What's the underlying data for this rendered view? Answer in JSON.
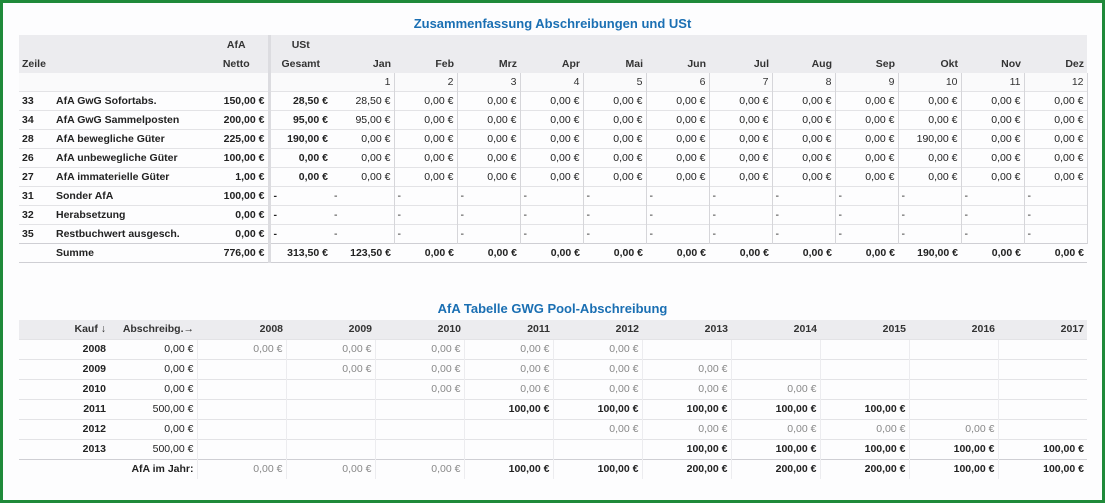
{
  "summary": {
    "title": "Zusammenfassung Abschreibungen und USt",
    "headers": {
      "zeile": "Zeile",
      "afa_top": "AfA",
      "afa_bottom": "Netto",
      "ust_top": "USt",
      "ust_bottom": "Gesamt",
      "months": [
        "Jan",
        "Feb",
        "Mrz",
        "Apr",
        "Mai",
        "Jun",
        "Jul",
        "Aug",
        "Sep",
        "Okt",
        "Nov",
        "Dez"
      ],
      "month_numbers": [
        "1",
        "2",
        "3",
        "4",
        "5",
        "6",
        "7",
        "8",
        "9",
        "10",
        "11",
        "12"
      ]
    },
    "rows": [
      {
        "nr": "33",
        "label": "AfA GwG Sofortabs.",
        "netto": "150,00 €",
        "ust": "28,50 €",
        "months": [
          "28,50 €",
          "0,00 €",
          "0,00 €",
          "0,00 €",
          "0,00 €",
          "0,00 €",
          "0,00 €",
          "0,00 €",
          "0,00 €",
          "0,00 €",
          "0,00 €",
          "0,00 €"
        ]
      },
      {
        "nr": "34",
        "label": "AfA GwG Sammelposten",
        "netto": "200,00 €",
        "ust": "95,00 €",
        "months": [
          "95,00 €",
          "0,00 €",
          "0,00 €",
          "0,00 €",
          "0,00 €",
          "0,00 €",
          "0,00 €",
          "0,00 €",
          "0,00 €",
          "0,00 €",
          "0,00 €",
          "0,00 €"
        ]
      },
      {
        "nr": "28",
        "label": "AfA bewegliche Güter",
        "netto": "225,00 €",
        "ust": "190,00 €",
        "months": [
          "0,00 €",
          "0,00 €",
          "0,00 €",
          "0,00 €",
          "0,00 €",
          "0,00 €",
          "0,00 €",
          "0,00 €",
          "0,00 €",
          "190,00 €",
          "0,00 €",
          "0,00 €"
        ]
      },
      {
        "nr": "26",
        "label": "AfA unbewegliche Güter",
        "netto": "100,00 €",
        "ust": "0,00 €",
        "months": [
          "0,00 €",
          "0,00 €",
          "0,00 €",
          "0,00 €",
          "0,00 €",
          "0,00 €",
          "0,00 €",
          "0,00 €",
          "0,00 €",
          "0,00 €",
          "0,00 €",
          "0,00 €"
        ]
      },
      {
        "nr": "27",
        "label": "AfA immaterielle Güter",
        "netto": "1,00 €",
        "ust": "0,00 €",
        "months": [
          "0,00 €",
          "0,00 €",
          "0,00 €",
          "0,00 €",
          "0,00 €",
          "0,00 €",
          "0,00 €",
          "0,00 €",
          "0,00 €",
          "0,00 €",
          "0,00 €",
          "0,00 €"
        ]
      },
      {
        "nr": "31",
        "label": "Sonder AfA",
        "netto": "100,00 €",
        "ust": "-",
        "months": [
          "-",
          "-",
          "-",
          "-",
          "-",
          "-",
          "-",
          "-",
          "-",
          "-",
          "-",
          "-"
        ]
      },
      {
        "nr": "32",
        "label": "Herabsetzung",
        "netto": "0,00 €",
        "ust": "-",
        "months": [
          "-",
          "-",
          "-",
          "-",
          "-",
          "-",
          "-",
          "-",
          "-",
          "-",
          "-",
          "-"
        ]
      },
      {
        "nr": "35",
        "label": "Restbuchwert ausgesch.",
        "netto": "0,00 €",
        "ust": "-",
        "months": [
          "-",
          "-",
          "-",
          "-",
          "-",
          "-",
          "-",
          "-",
          "-",
          "-",
          "-",
          "-"
        ]
      }
    ],
    "sum": {
      "label": "Summe",
      "netto": "776,00 €",
      "ust": "313,50 €",
      "months": [
        "123,50 €",
        "0,00 €",
        "0,00 €",
        "0,00 €",
        "0,00 €",
        "0,00 €",
        "0,00 €",
        "0,00 €",
        "0,00 €",
        "190,00 €",
        "0,00 €",
        "0,00 €"
      ]
    }
  },
  "pool": {
    "title": "AfA Tabelle GWG Pool-Abschreibung",
    "headers": {
      "kauf": "Kauf ↓",
      "abschreib": "Abschreibg.→",
      "years": [
        "2008",
        "2009",
        "2010",
        "2011",
        "2012",
        "2013",
        "2014",
        "2015",
        "2016",
        "2017"
      ]
    },
    "rows": [
      {
        "year": "2008",
        "value": "0,00 €",
        "cells": [
          "0,00 €",
          "0,00 €",
          "0,00 €",
          "0,00 €",
          "0,00 €",
          "",
          "",
          "",
          "",
          ""
        ],
        "bold": false
      },
      {
        "year": "2009",
        "value": "0,00 €",
        "cells": [
          "",
          "0,00 €",
          "0,00 €",
          "0,00 €",
          "0,00 €",
          "0,00 €",
          "",
          "",
          "",
          ""
        ],
        "bold": false
      },
      {
        "year": "2010",
        "value": "0,00 €",
        "cells": [
          "",
          "",
          "0,00 €",
          "0,00 €",
          "0,00 €",
          "0,00 €",
          "0,00 €",
          "",
          "",
          ""
        ],
        "bold": false
      },
      {
        "year": "2011",
        "value": "500,00 €",
        "cells": [
          "",
          "",
          "",
          "100,00 €",
          "100,00 €",
          "100,00 €",
          "100,00 €",
          "100,00 €",
          "",
          ""
        ],
        "bold": true
      },
      {
        "year": "2012",
        "value": "0,00 €",
        "cells": [
          "",
          "",
          "",
          "",
          "0,00 €",
          "0,00 €",
          "0,00 €",
          "0,00 €",
          "0,00 €",
          ""
        ],
        "bold": false
      },
      {
        "year": "2013",
        "value": "500,00 €",
        "cells": [
          "",
          "",
          "",
          "",
          "",
          "100,00 €",
          "100,00 €",
          "100,00 €",
          "100,00 €",
          "100,00 €"
        ],
        "bold": true
      }
    ],
    "footer": {
      "label": "AfA im Jahr:",
      "cells": [
        "0,00 €",
        "0,00 €",
        "0,00 €",
        "100,00 €",
        "100,00 €",
        "200,00 €",
        "200,00 €",
        "200,00 €",
        "100,00 €",
        "100,00 €"
      ]
    }
  }
}
